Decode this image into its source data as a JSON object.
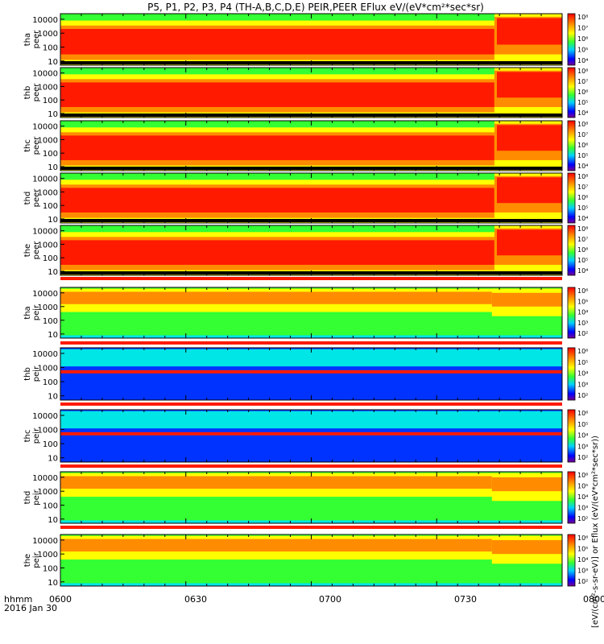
{
  "chart_data": {
    "type": "heatmap",
    "title": "P5, P1, P2, P3, P4 (TH-A,B,C,D,E) PEIR,PEER EFlux eV/(eV*cm²*sec*sr)",
    "x_axis": {
      "ticks": [
        "0600",
        "0630",
        "0700",
        "0730",
        "0800"
      ],
      "corner_label": "hhmm",
      "date_label": "2016 Jan 30",
      "range_minutes": [
        0,
        120
      ]
    },
    "y_axis": {
      "scale": "log",
      "ticks": [
        "10",
        "100",
        "1000",
        "10000"
      ],
      "range_eV": [
        5,
        25000
      ]
    },
    "colorbar": {
      "label": "[eV/(cm²-s-sr-eV)] or Eflux (eV/(eV*cm²*sec*sr))",
      "ticks_electron": [
        "10⁴",
        "10⁵",
        "10⁶",
        "10⁷",
        "10⁸"
      ],
      "ticks_ion": [
        "10²",
        "10³",
        "10⁴",
        "10⁵",
        "10⁶"
      ],
      "scale": "log"
    },
    "panels": [
      {
        "probe": "tha",
        "species": "peer",
        "label_top": "tha",
        "label_bottom": "peer"
      },
      {
        "probe": "thb",
        "species": "peer",
        "label_top": "thb",
        "label_bottom": "peer"
      },
      {
        "probe": "thc",
        "species": "peer",
        "label_top": "thc",
        "label_bottom": "peer"
      },
      {
        "probe": "thd",
        "species": "peer",
        "label_top": "thd",
        "label_bottom": "peer"
      },
      {
        "probe": "the",
        "species": "peer",
        "label_top": "the",
        "label_bottom": "peer"
      },
      {
        "probe": "tha",
        "species": "peir",
        "label_top": "tha",
        "label_bottom": "peir"
      },
      {
        "probe": "thb",
        "species": "peir",
        "label_top": "thb",
        "label_bottom": "peir"
      },
      {
        "probe": "thc",
        "species": "peir",
        "label_top": "thc",
        "label_bottom": "peir"
      },
      {
        "probe": "thd",
        "species": "peir",
        "label_top": "thd",
        "label_bottom": "peir"
      },
      {
        "probe": "the",
        "species": "peir",
        "label_top": "the",
        "label_bottom": "peir"
      }
    ]
  },
  "colors": {
    "red": "#ff1a00",
    "orange": "#ff8c00",
    "yellow": "#ffff00",
    "green": "#33ff33",
    "cyan": "#00e5e5",
    "blue": "#0033ff",
    "darkblue": "#00007f",
    "black": "#000000"
  }
}
